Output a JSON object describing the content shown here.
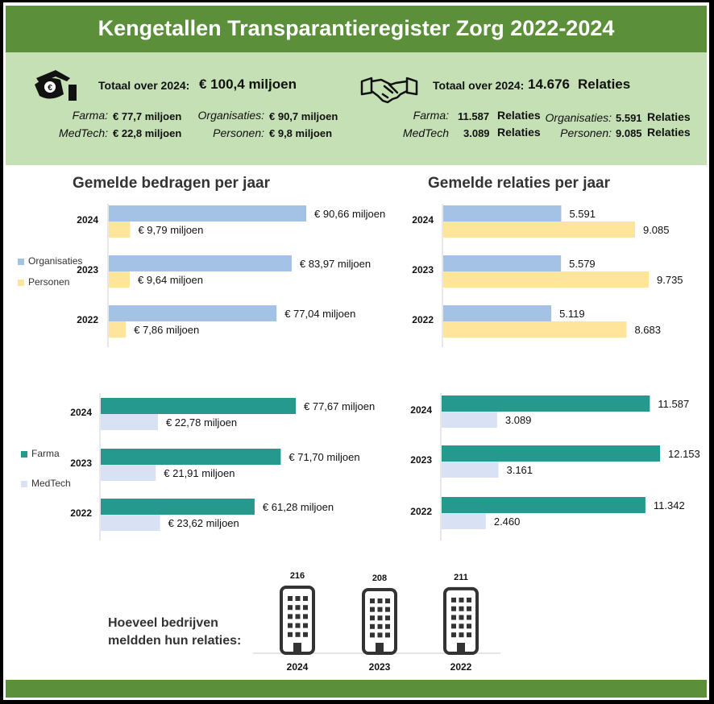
{
  "title": "Kengetallen Transparantieregister Zorg 2022-2024",
  "colors": {
    "green_dark": "#5b8f3a",
    "green_light": "#c5e0b5",
    "organisaties": "#a4c2e6",
    "personen": "#ffe59b",
    "farma": "#26998f",
    "medtech": "#d9e1f4"
  },
  "kpi_left": {
    "icon": "money-hand-icon",
    "total_label": "Totaal over 2024:",
    "total_value": "€ 100,4 miljoen",
    "farma_label": "Farma:",
    "farma_value": "€ 77,7 miljoen",
    "medtech_label": "MedTech:",
    "medtech_value": "€ 22,8 miljoen",
    "organisaties_label": "Organisaties:",
    "organisaties_value": "€ 90,7 miljoen",
    "personen_label": "Personen:",
    "personen_value": "€ 9,8 miljoen"
  },
  "kpi_right": {
    "icon": "handshake-icon",
    "total_label": "Totaal over 2024:",
    "total_value": "14.676",
    "total_unit": "Relaties",
    "farma_label": "Farma:",
    "farma_value": "11.587",
    "medtech_label": "MedTech",
    "medtech_value": "3.089",
    "organisaties_label": "Organisaties:",
    "organisaties_value": "5.591",
    "personen_label": "Personen:",
    "personen_value": "9.085",
    "unit": "Relaties"
  },
  "section_titles": {
    "bedragen": "Gemelde bedragen per jaar",
    "relaties": "Gemelde relaties per jaar"
  },
  "companies": {
    "question": [
      "Hoeveel bedrijven",
      "meldden hun relaties:"
    ],
    "icon": "office-building-icon"
  },
  "chart_data": [
    {
      "type": "bar",
      "orientation": "horizontal",
      "categories": [
        "2024",
        "2023",
        "2022"
      ],
      "series": [
        {
          "name": "Organisaties",
          "values": [
            90.66,
            83.97,
            77.04
          ],
          "labels": [
            "€ 90,66 miljoen",
            "€ 83,97 miljoen",
            "€ 77,04 miljoen"
          ]
        },
        {
          "name": "Personen",
          "values": [
            9.79,
            9.64,
            7.86
          ],
          "labels": [
            "€ 9,79 miljoen",
            "€ 9,64 miljoen",
            "€ 7,86 miljoen"
          ]
        }
      ],
      "xlim": [
        0,
        100
      ],
      "legend": "left"
    },
    {
      "type": "bar",
      "orientation": "horizontal",
      "categories": [
        "2024",
        "2023",
        "2022"
      ],
      "series": [
        {
          "name": "Organisaties",
          "values": [
            5591,
            5579,
            5119
          ],
          "labels": [
            "5.591",
            "5.579",
            "5.119"
          ]
        },
        {
          "name": "Personen",
          "values": [
            9085,
            9735,
            8683
          ],
          "labels": [
            "9.085",
            "9.735",
            "8.683"
          ]
        }
      ],
      "xlim": [
        0,
        10000
      ]
    },
    {
      "type": "bar",
      "orientation": "horizontal",
      "categories": [
        "2024",
        "2023",
        "2022"
      ],
      "series": [
        {
          "name": "Farma",
          "values": [
            77.67,
            71.7,
            61.28
          ],
          "labels": [
            "€ 77,67 miljoen",
            "€ 71,70 miljoen",
            "€ 61,28 miljoen"
          ]
        },
        {
          "name": "MedTech",
          "values": [
            22.78,
            21.91,
            23.62
          ],
          "labels": [
            "€ 22,78 miljoen",
            "€ 21,91 miljoen",
            "€ 23,62 miljoen"
          ]
        }
      ],
      "xlim": [
        0,
        100
      ],
      "legend": "left"
    },
    {
      "type": "bar",
      "orientation": "horizontal",
      "categories": [
        "2024",
        "2023",
        "2022"
      ],
      "series": [
        {
          "name": "Farma",
          "values": [
            11587,
            12153,
            11342
          ],
          "labels": [
            "11.587",
            "12.153",
            "11.342"
          ]
        },
        {
          "name": "MedTech",
          "values": [
            3089,
            3161,
            2460
          ],
          "labels": [
            "3.089",
            "3.161",
            "2.460"
          ]
        }
      ],
      "xlim": [
        0,
        13000
      ]
    },
    {
      "type": "bar",
      "categories": [
        "2024",
        "2023",
        "2022"
      ],
      "values": [
        216,
        208,
        211
      ],
      "labels": [
        "216",
        "208",
        "211"
      ]
    }
  ]
}
